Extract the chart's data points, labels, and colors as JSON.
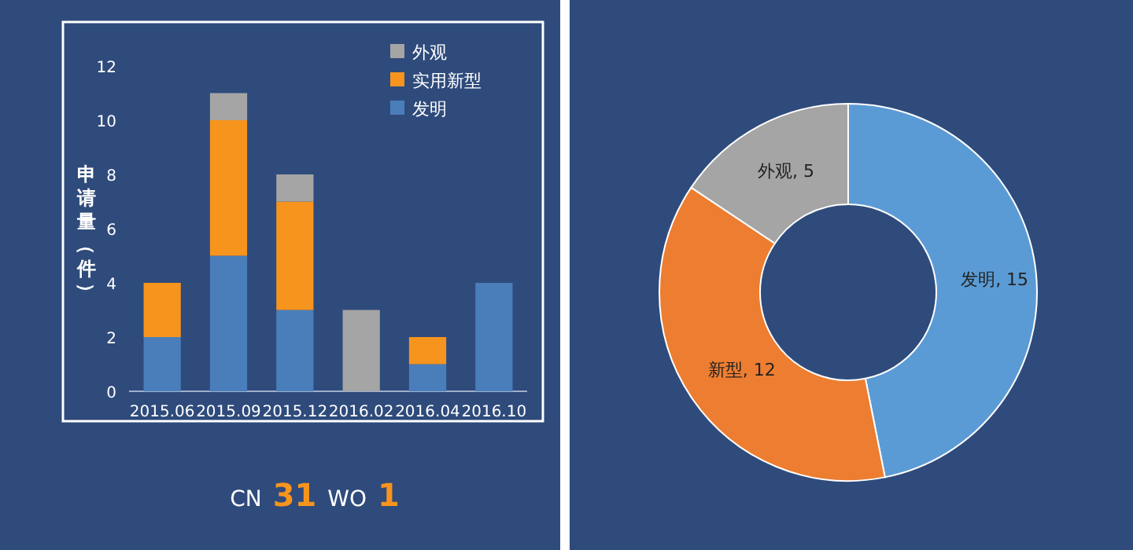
{
  "chart_data": [
    {
      "type": "bar",
      "stacked": true,
      "ylabel": "申请量（件）",
      "categories": [
        "2015.06",
        "2015.09",
        "2015.12",
        "2016.02",
        "2016.04",
        "2016.10"
      ],
      "series": [
        {
          "name": "发明",
          "color": "#4a7ebb",
          "values": [
            2,
            5,
            3,
            0,
            1,
            4
          ]
        },
        {
          "name": "实用新型",
          "color": "#f7941d",
          "values": [
            2,
            5,
            4,
            0,
            1,
            0
          ]
        },
        {
          "name": "外观",
          "color": "#a5a5a5",
          "values": [
            0,
            1,
            1,
            3,
            0,
            0
          ]
        }
      ],
      "ylim": [
        0,
        12
      ],
      "yticks": [
        0,
        2,
        4,
        6,
        8,
        10,
        12
      ],
      "grid": false,
      "legend": "top right",
      "annotations": [
        "CN",
        "31",
        "WO",
        "1"
      ]
    },
    {
      "type": "donut",
      "categories": [
        "发明",
        "新型",
        "外观"
      ],
      "values": [
        15,
        12,
        5
      ],
      "colors": [
        "#5b9bd5",
        "#ed7d31",
        "#a5a5a5"
      ],
      "value_labels": [
        ", 15",
        ", 12",
        ", 5"
      ]
    }
  ]
}
